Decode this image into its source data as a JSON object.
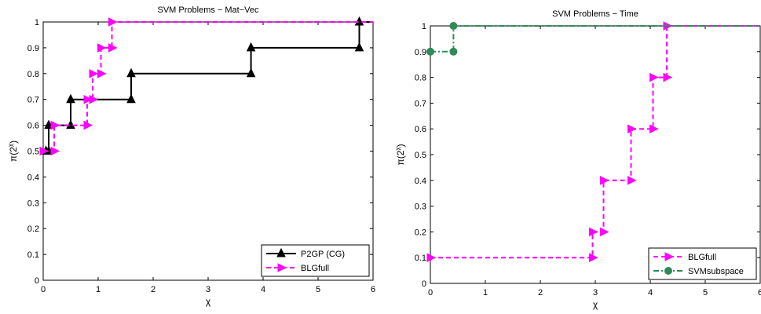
{
  "chart_data": [
    {
      "type": "line",
      "step": true,
      "title": "SVM Problems − Mat−Vec",
      "xlabel": "χ",
      "ylabel_base": "π(2",
      "ylabel_sup": "χ",
      "ylabel_end": ")",
      "xlim": [
        0,
        6
      ],
      "ylim": [
        0,
        1
      ],
      "xticks": [
        "0",
        "1",
        "2",
        "3",
        "4",
        "5",
        "6"
      ],
      "yticks": [
        "0",
        "0.1",
        "0.2",
        "0.3",
        "0.4",
        "0.5",
        "0.6",
        "0.7",
        "0.8",
        "0.9",
        "1"
      ],
      "grid": false,
      "legend_position": "bottom-right",
      "series": [
        {
          "name": "P2GP (CG)",
          "color": "#000000",
          "dash": "solid",
          "marker": "triangle-up",
          "x": [
            0.05,
            0.1,
            0.5,
            1.6,
            3.78,
            5.75,
            6.0
          ],
          "y": [
            0.5,
            0.6,
            0.7,
            0.8,
            0.9,
            1.0,
            1.0
          ]
        },
        {
          "name": "BLGfull",
          "color": "#ff00ff",
          "dash": "dashed",
          "marker": "triangle-right",
          "x": [
            0.0,
            0.2,
            0.8,
            0.9,
            1.05,
            1.25,
            6.0
          ],
          "y": [
            0.5,
            0.6,
            0.7,
            0.8,
            0.9,
            1.0,
            1.0
          ]
        }
      ]
    },
    {
      "type": "line",
      "step": true,
      "title": "SVM Problems − Time",
      "xlabel": "χ",
      "ylabel_base": "π(2",
      "ylabel_sup": "χ",
      "ylabel_end": ")",
      "xlim": [
        0,
        6
      ],
      "ylim": [
        0,
        1
      ],
      "xticks": [
        "0",
        "1",
        "2",
        "3",
        "4",
        "5",
        "6"
      ],
      "yticks": [
        "0",
        "0.1",
        "0.2",
        "0.3",
        "0.4",
        "0.5",
        "0.6",
        "0.7",
        "0.8",
        "0.9",
        "1"
      ],
      "grid": false,
      "legend_position": "bottom-right",
      "series": [
        {
          "name": "BLGfull",
          "color": "#ff00ff",
          "dash": "dashed",
          "marker": "triangle-right",
          "x": [
            0.0,
            2.95,
            3.15,
            3.65,
            4.05,
            4.3,
            6.0
          ],
          "y": [
            0.1,
            0.2,
            0.4,
            0.6,
            0.8,
            1.0,
            1.0
          ]
        },
        {
          "name": "SVMsubspace",
          "color": "#2e8b57",
          "dash": "dashdot",
          "marker": "circle",
          "x": [
            0.0,
            0.42,
            6.0
          ],
          "y": [
            0.9,
            1.0,
            1.0
          ]
        }
      ]
    }
  ]
}
